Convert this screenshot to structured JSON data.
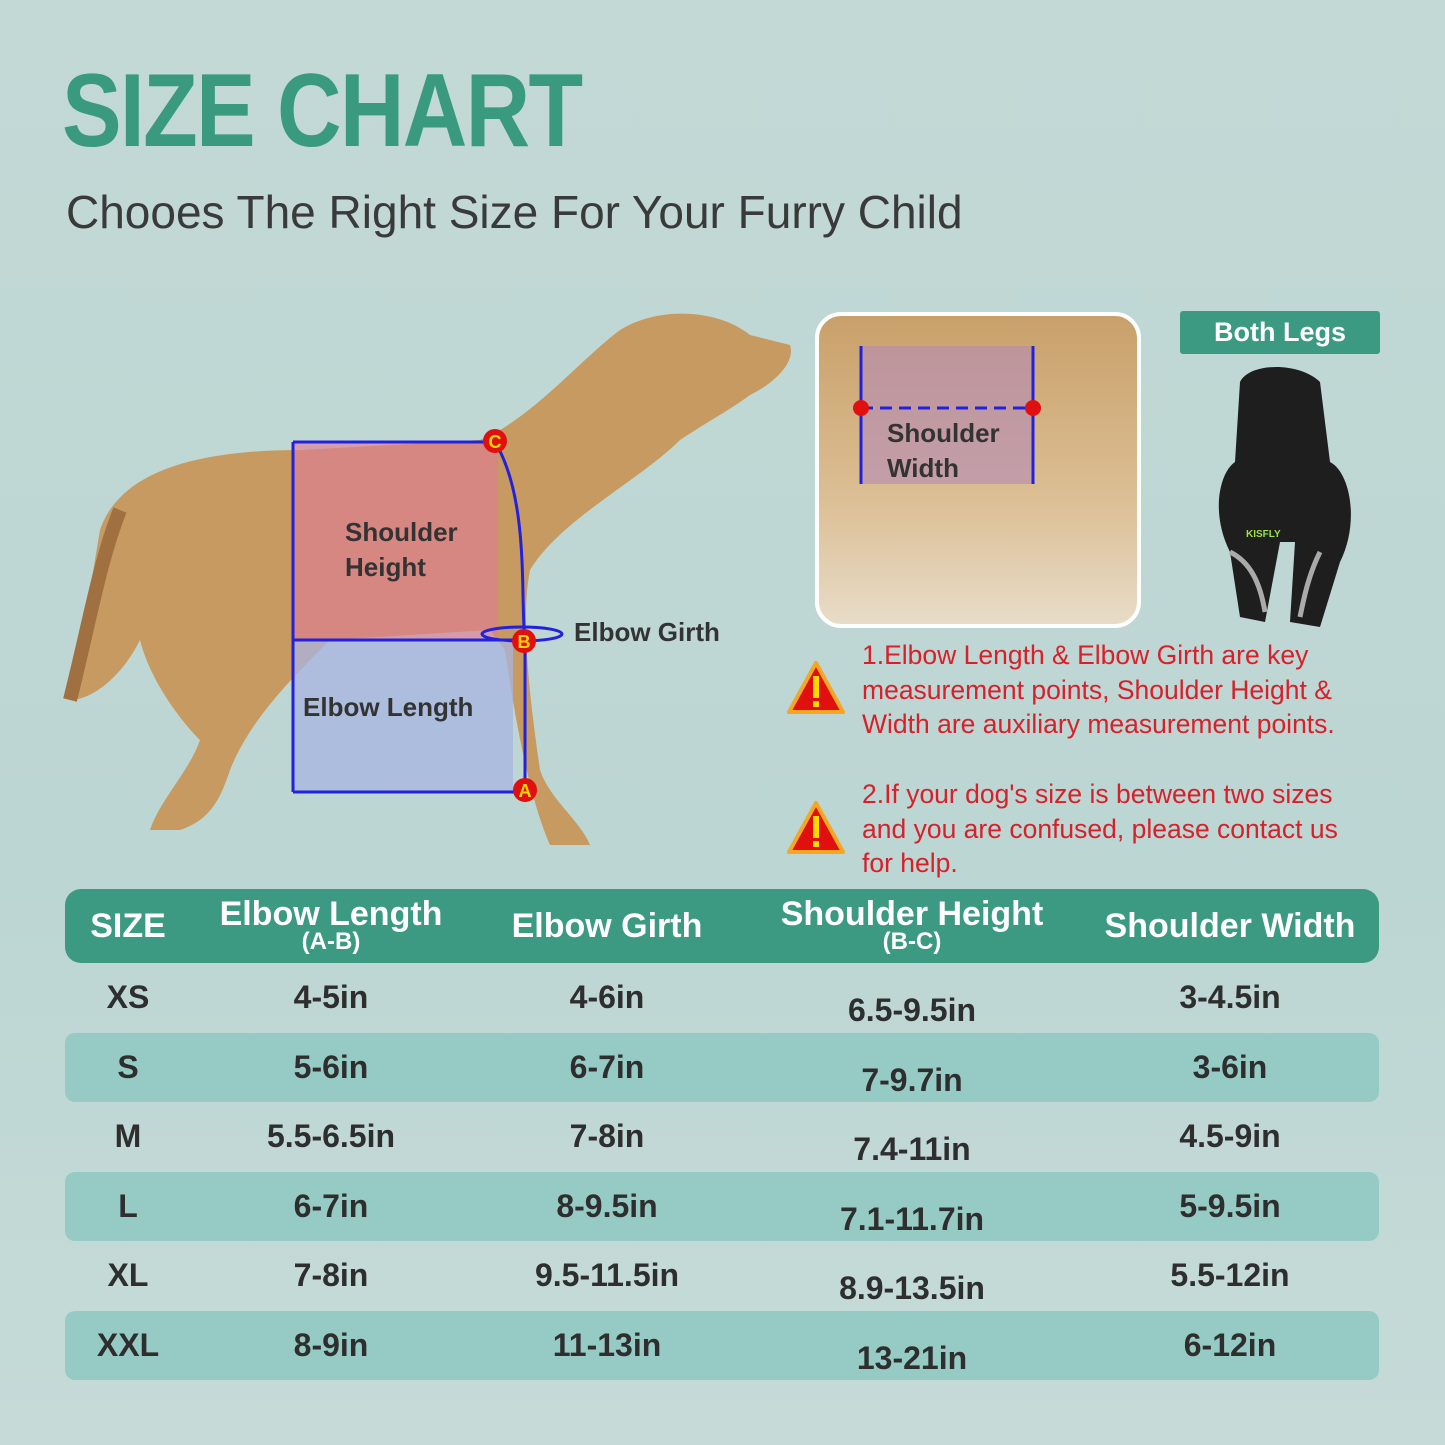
{
  "header": {
    "title": "SIZE CHART",
    "subtitle": "Chooes The Right Size For Your Furry Child"
  },
  "diagram": {
    "labels": {
      "shoulder_height": [
        "Shoulder",
        "Height"
      ],
      "elbow_girth": "Elbow Girth",
      "elbow_length": "Elbow Length",
      "shoulder_width": [
        "Shoulder",
        "Width"
      ]
    },
    "points": [
      "A",
      "B",
      "C"
    ],
    "overlay_colors": {
      "shoulder": "#e0708a",
      "elbow": "#a8b4e0",
      "line": "#2222dd",
      "point": "#e01010"
    }
  },
  "product": {
    "badge": "Both Legs",
    "logo": "KISFLY"
  },
  "notes": [
    [
      "1.Elbow  Length & Elbow Girth are key",
      "measurement points, Shoulder Height &",
      "Width are auxiliary measurement points."
    ],
    [
      "2.If your dog's size is between two sizes",
      "and you are confused, please contact us",
      "for help."
    ]
  ],
  "table": {
    "headers": [
      {
        "label": "SIZE",
        "sub": ""
      },
      {
        "label": "Elbow Length",
        "sub": "(A-B)"
      },
      {
        "label": "Elbow Girth",
        "sub": ""
      },
      {
        "label": "Shoulder Height",
        "sub": "(B-C)"
      },
      {
        "label": "Shoulder Width",
        "sub": ""
      }
    ],
    "rows": [
      [
        "XS",
        "4-5in",
        "4-6in",
        "6.5-9.5in",
        "3-4.5in"
      ],
      [
        "S",
        "5-6in",
        "6-7in",
        "7-9.7in",
        "3-6in"
      ],
      [
        "M",
        "5.5-6.5in",
        "7-8in",
        "7.4-11in",
        "4.5-9in"
      ],
      [
        "L",
        "6-7in",
        "8-9.5in",
        "7.1-11.7in",
        "5-9.5in"
      ],
      [
        "XL",
        "7-8in",
        "9.5-11.5in",
        "8.9-13.5in",
        "5.5-12in"
      ],
      [
        "XXL",
        "8-9in",
        "11-13in",
        "13-21in",
        "6-12in"
      ]
    ]
  },
  "colors": {
    "accent": "#3d9a82",
    "stripe": "#96cbc5",
    "warning": "#d8202a",
    "background": "#c3d9d6"
  }
}
